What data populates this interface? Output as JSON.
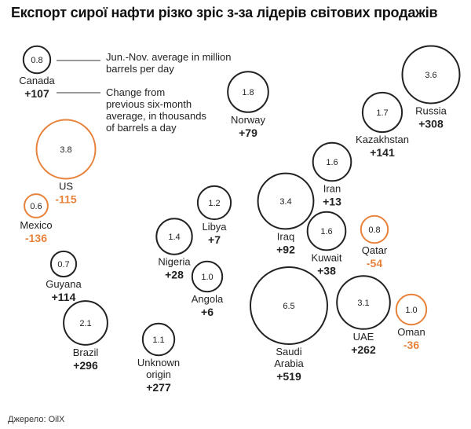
{
  "title": "Експорт сирої нафти різко зріс з-за лідерів світових продажів",
  "source": "Джерело: OilX",
  "colors": {
    "increase": "#222222",
    "decrease": "#e8823a"
  },
  "legend": {
    "size_label": "Jun.-Nov. average in million barrels per day",
    "change_label": "Change from previous six-month average, in thousands of barrels a day"
  },
  "chart_data": {
    "type": "bubble",
    "title": "Експорт сирої нафти різко зріс з-за лідерів світових продажів",
    "size_metric": "Jun.-Nov. average in million barrels per day",
    "change_metric": "Change from previous six-month average, in thousands of barrels a day",
    "countries": [
      {
        "name": "Canada",
        "value": 0.8,
        "change": 107,
        "value_label": "0.8",
        "change_label": "+107"
      },
      {
        "name": "US",
        "value": 3.8,
        "change": -115,
        "value_label": "3.8",
        "change_label": "-115"
      },
      {
        "name": "Mexico",
        "value": 0.6,
        "change": -136,
        "value_label": "0.6",
        "change_label": "-136"
      },
      {
        "name": "Guyana",
        "value": 0.7,
        "change": 114,
        "value_label": "0.7",
        "change_label": "+114"
      },
      {
        "name": "Brazil",
        "value": 2.1,
        "change": 296,
        "value_label": "2.1",
        "change_label": "+296"
      },
      {
        "name": "Norway",
        "value": 1.8,
        "change": 79,
        "value_label": "1.8",
        "change_label": "+79"
      },
      {
        "name": "Libya",
        "value": 1.2,
        "change": 7,
        "value_label": "1.2",
        "change_label": "+7"
      },
      {
        "name": "Nigeria",
        "value": 1.4,
        "change": 28,
        "value_label": "1.4",
        "change_label": "+28"
      },
      {
        "name": "Angola",
        "value": 1.0,
        "change": 6,
        "value_label": "1.0",
        "change_label": "+6"
      },
      {
        "name": "Unknown origin",
        "value": 1.1,
        "change": 277,
        "value_label": "1.1",
        "change_label": "+277"
      },
      {
        "name": "Iraq",
        "value": 3.4,
        "change": 92,
        "value_label": "3.4",
        "change_label": "+92"
      },
      {
        "name": "Iran",
        "value": 1.6,
        "change": 13,
        "value_label": "1.6",
        "change_label": "+13"
      },
      {
        "name": "Kuwait",
        "value": 1.6,
        "change": 38,
        "value_label": "1.6",
        "change_label": "+38"
      },
      {
        "name": "Qatar",
        "value": 0.8,
        "change": -54,
        "value_label": "0.8",
        "change_label": "-54"
      },
      {
        "name": "Saudi Arabia",
        "value": 6.5,
        "change": 519,
        "value_label": "6.5",
        "change_label": "+519"
      },
      {
        "name": "UAE",
        "value": 3.1,
        "change": 262,
        "value_label": "3.1",
        "change_label": "+262"
      },
      {
        "name": "Oman",
        "value": 1.0,
        "change": -36,
        "value_label": "1.0",
        "change_label": "-36"
      },
      {
        "name": "Kazakhstan",
        "value": 1.7,
        "change": 141,
        "value_label": "1.7",
        "change_label": "+141"
      },
      {
        "name": "Russia",
        "value": 3.6,
        "change": 308,
        "value_label": "3.6",
        "change_label": "+308"
      }
    ]
  }
}
